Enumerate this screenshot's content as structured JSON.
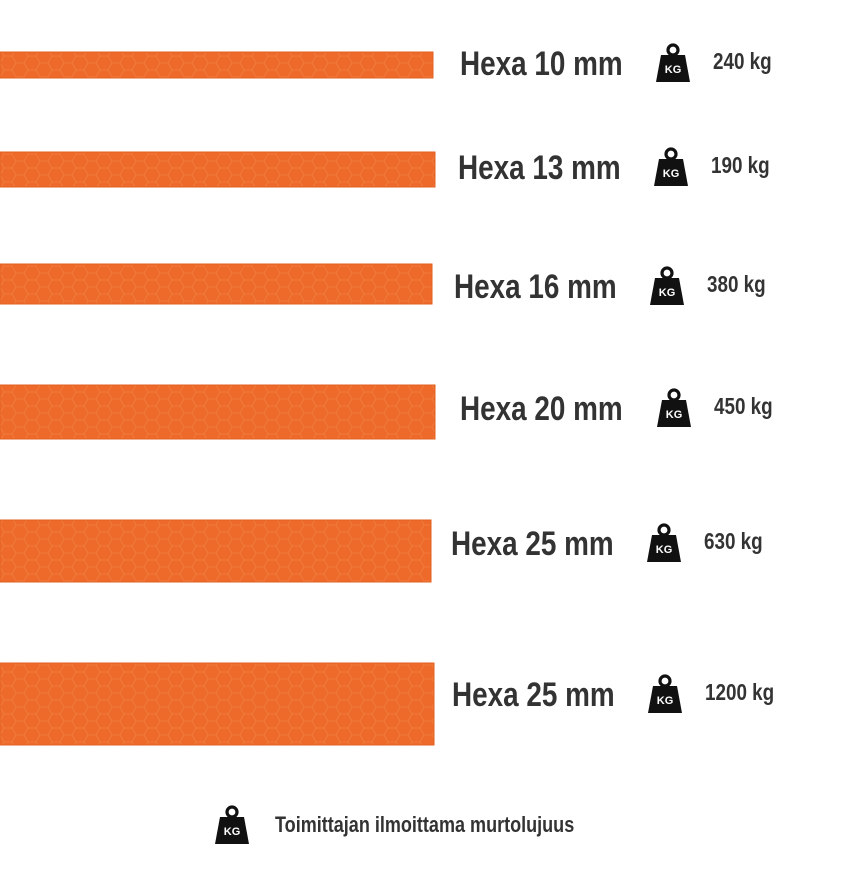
{
  "items": [
    {
      "name": "Hexa 10 mm",
      "load": "240 kg"
    },
    {
      "name": "Hexa 13 mm",
      "load": "190 kg"
    },
    {
      "name": "Hexa 16 mm",
      "load": "380 kg"
    },
    {
      "name": "Hexa 20 mm",
      "load": "450 kg"
    },
    {
      "name": "Hexa 25 mm",
      "load": "630 kg"
    },
    {
      "name": "Hexa 25 mm",
      "load": "1200 kg"
    }
  ],
  "icon_label": "KG",
  "legend": "Toimittajan ilmoittama murtolujuus"
}
